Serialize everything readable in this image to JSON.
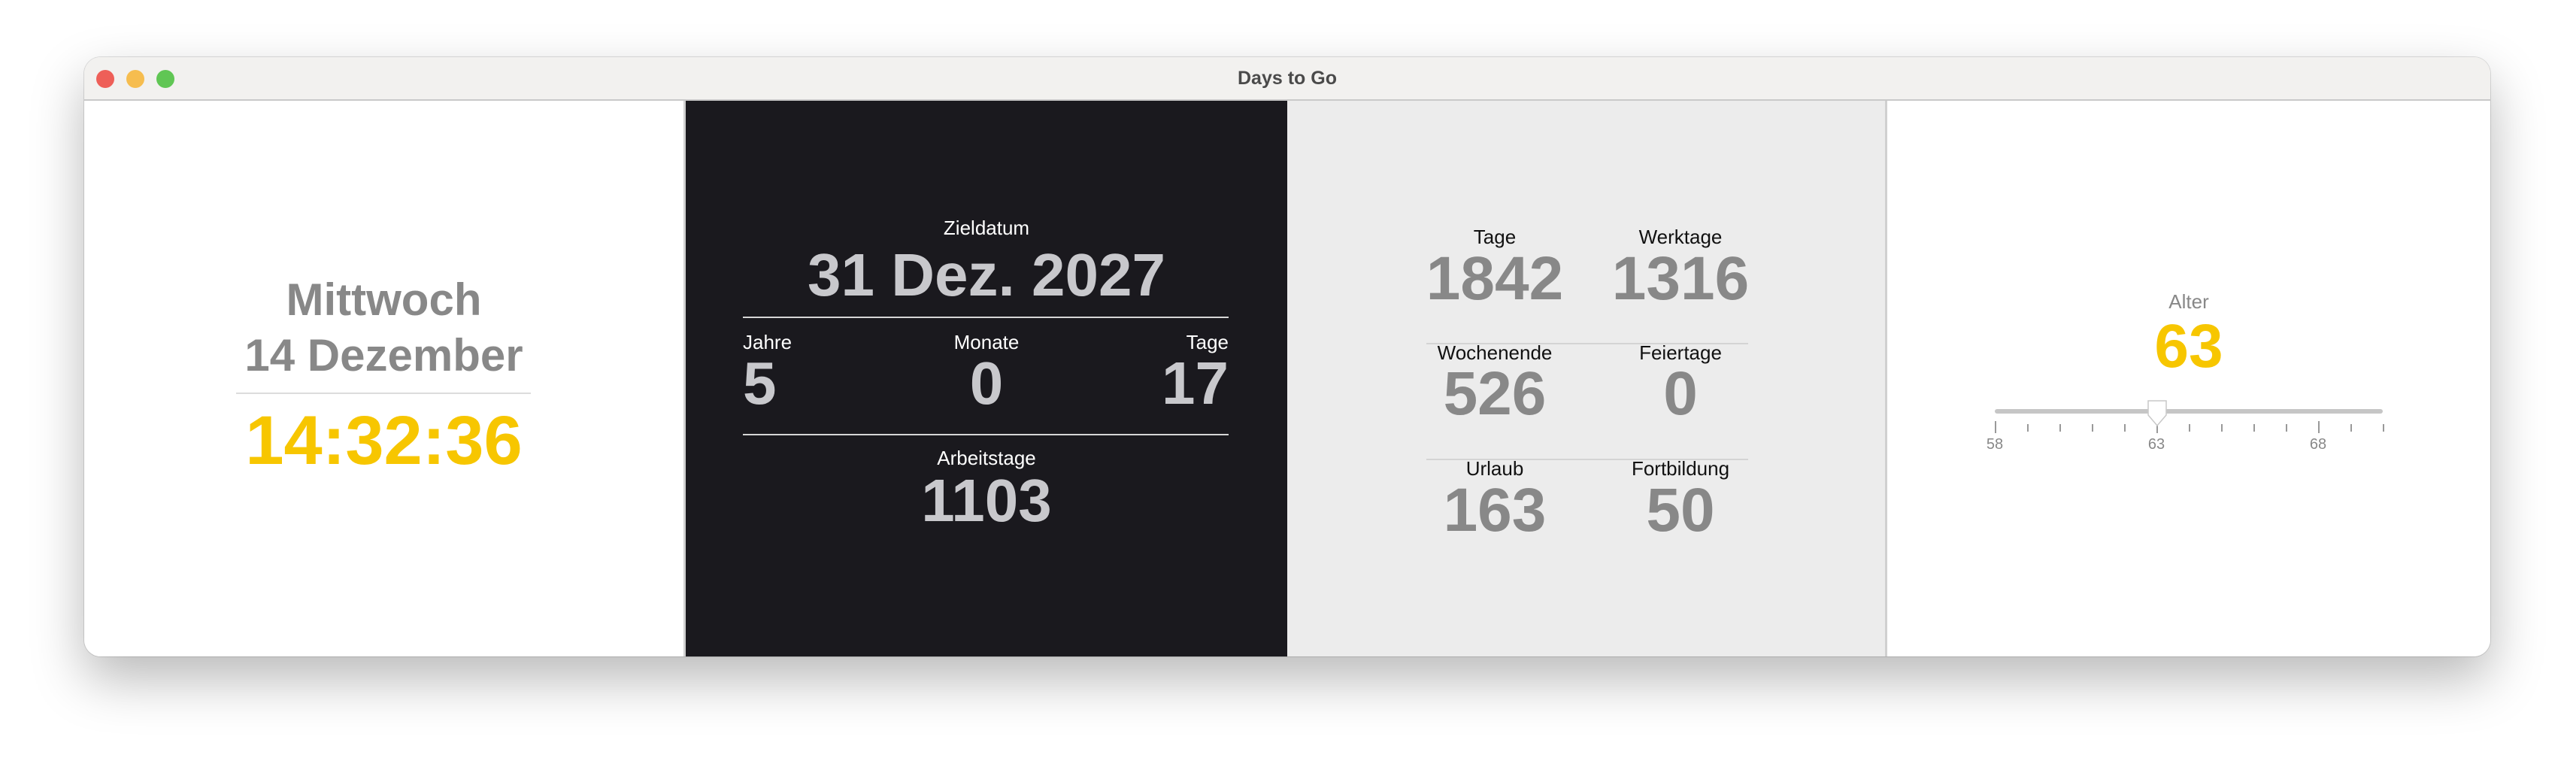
{
  "window": {
    "title": "Days to Go"
  },
  "clock": {
    "weekday": "Mittwoch",
    "date": "14 Dezember",
    "time": "14:32:36"
  },
  "target": {
    "label": "Zieldatum",
    "date": "31 Dez. 2027",
    "years_label": "Jahre",
    "years": "5",
    "months_label": "Monate",
    "months": "0",
    "days_label": "Tage",
    "days": "17",
    "workdays_label": "Arbeitstage",
    "workdays": "1103"
  },
  "stats": [
    {
      "label": "Tage",
      "value": "1842"
    },
    {
      "label": "Werktage",
      "value": "1316"
    },
    {
      "label": "Wochenende",
      "value": "526"
    },
    {
      "label": "Feiertage",
      "value": "0"
    },
    {
      "label": "Urlaub",
      "value": "163"
    },
    {
      "label": "Fortbildung",
      "value": "50"
    }
  ],
  "age": {
    "label": "Alter",
    "value": "63",
    "slider": {
      "min": 58,
      "max": 70,
      "value": 63,
      "tick_labels": [
        "58",
        "63",
        "68"
      ]
    }
  },
  "colors": {
    "accent": "#f7c600",
    "dark_panel": "#1a191e",
    "stat_gray": "#888888"
  }
}
